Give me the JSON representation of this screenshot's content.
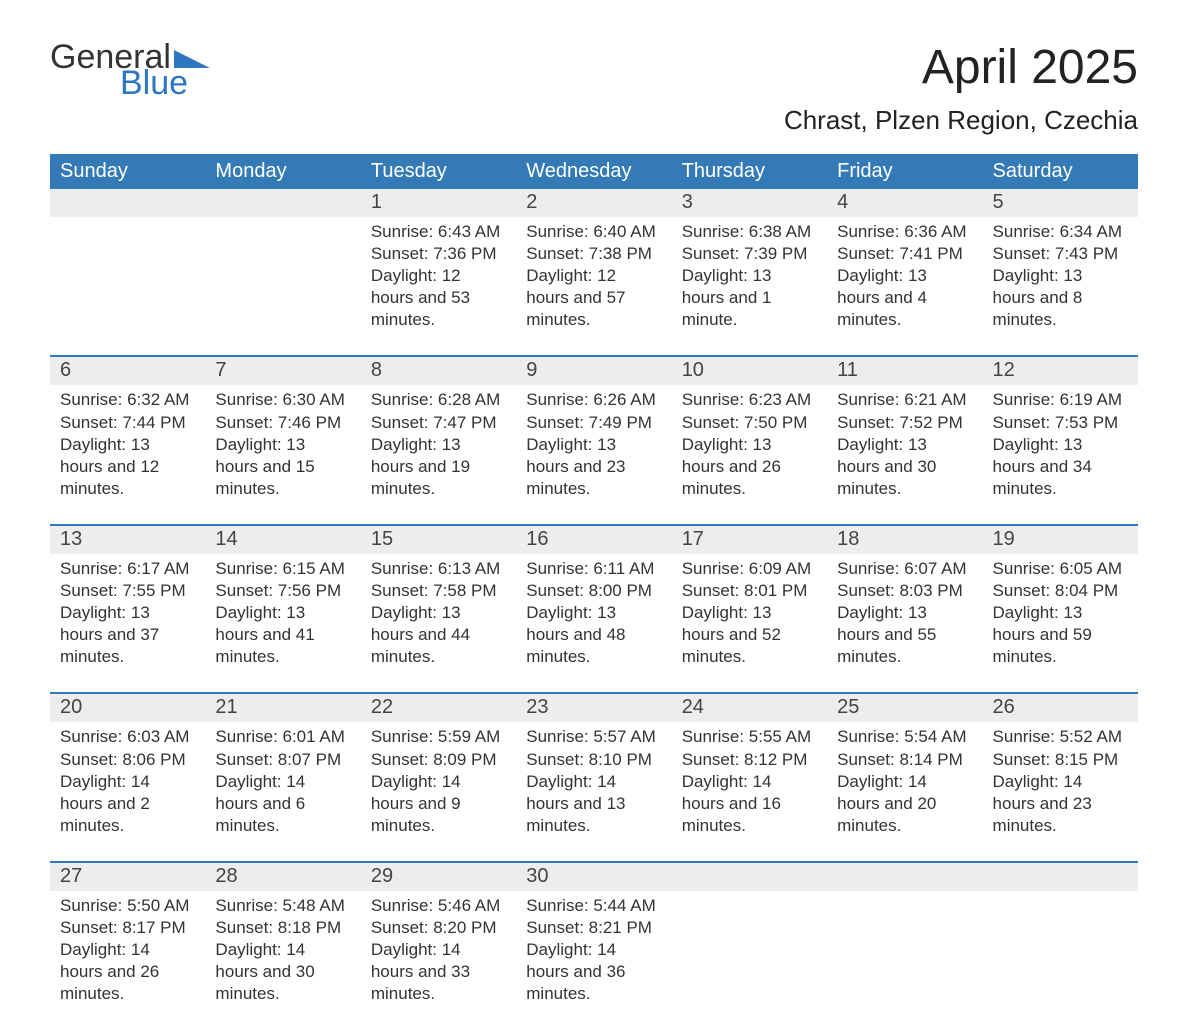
{
  "logo": {
    "word1": "General",
    "word2": "Blue"
  },
  "title": "April 2025",
  "location": "Chrast, Plzen Region, Czechia",
  "colors": {
    "header_bg": "#337ab7",
    "header_text": "#ffffff",
    "daynum_bg": "#ededed",
    "accent": "#2d76c0",
    "text": "#333333",
    "page_bg": "#ffffff"
  },
  "typography": {
    "title_fontsize": 48,
    "location_fontsize": 26,
    "header_fontsize": 20,
    "daynum_fontsize": 20,
    "body_fontsize": 17
  },
  "daynames": [
    "Sunday",
    "Monday",
    "Tuesday",
    "Wednesday",
    "Thursday",
    "Friday",
    "Saturday"
  ],
  "weeks": [
    [
      {
        "n": "",
        "sunrise": "",
        "sunset": "",
        "daylight": ""
      },
      {
        "n": "",
        "sunrise": "",
        "sunset": "",
        "daylight": ""
      },
      {
        "n": "1",
        "sunrise": "Sunrise: 6:43 AM",
        "sunset": "Sunset: 7:36 PM",
        "daylight": "Daylight: 12 hours and 53 minutes."
      },
      {
        "n": "2",
        "sunrise": "Sunrise: 6:40 AM",
        "sunset": "Sunset: 7:38 PM",
        "daylight": "Daylight: 12 hours and 57 minutes."
      },
      {
        "n": "3",
        "sunrise": "Sunrise: 6:38 AM",
        "sunset": "Sunset: 7:39 PM",
        "daylight": "Daylight: 13 hours and 1 minute."
      },
      {
        "n": "4",
        "sunrise": "Sunrise: 6:36 AM",
        "sunset": "Sunset: 7:41 PM",
        "daylight": "Daylight: 13 hours and 4 minutes."
      },
      {
        "n": "5",
        "sunrise": "Sunrise: 6:34 AM",
        "sunset": "Sunset: 7:43 PM",
        "daylight": "Daylight: 13 hours and 8 minutes."
      }
    ],
    [
      {
        "n": "6",
        "sunrise": "Sunrise: 6:32 AM",
        "sunset": "Sunset: 7:44 PM",
        "daylight": "Daylight: 13 hours and 12 minutes."
      },
      {
        "n": "7",
        "sunrise": "Sunrise: 6:30 AM",
        "sunset": "Sunset: 7:46 PM",
        "daylight": "Daylight: 13 hours and 15 minutes."
      },
      {
        "n": "8",
        "sunrise": "Sunrise: 6:28 AM",
        "sunset": "Sunset: 7:47 PM",
        "daylight": "Daylight: 13 hours and 19 minutes."
      },
      {
        "n": "9",
        "sunrise": "Sunrise: 6:26 AM",
        "sunset": "Sunset: 7:49 PM",
        "daylight": "Daylight: 13 hours and 23 minutes."
      },
      {
        "n": "10",
        "sunrise": "Sunrise: 6:23 AM",
        "sunset": "Sunset: 7:50 PM",
        "daylight": "Daylight: 13 hours and 26 minutes."
      },
      {
        "n": "11",
        "sunrise": "Sunrise: 6:21 AM",
        "sunset": "Sunset: 7:52 PM",
        "daylight": "Daylight: 13 hours and 30 minutes."
      },
      {
        "n": "12",
        "sunrise": "Sunrise: 6:19 AM",
        "sunset": "Sunset: 7:53 PM",
        "daylight": "Daylight: 13 hours and 34 minutes."
      }
    ],
    [
      {
        "n": "13",
        "sunrise": "Sunrise: 6:17 AM",
        "sunset": "Sunset: 7:55 PM",
        "daylight": "Daylight: 13 hours and 37 minutes."
      },
      {
        "n": "14",
        "sunrise": "Sunrise: 6:15 AM",
        "sunset": "Sunset: 7:56 PM",
        "daylight": "Daylight: 13 hours and 41 minutes."
      },
      {
        "n": "15",
        "sunrise": "Sunrise: 6:13 AM",
        "sunset": "Sunset: 7:58 PM",
        "daylight": "Daylight: 13 hours and 44 minutes."
      },
      {
        "n": "16",
        "sunrise": "Sunrise: 6:11 AM",
        "sunset": "Sunset: 8:00 PM",
        "daylight": "Daylight: 13 hours and 48 minutes."
      },
      {
        "n": "17",
        "sunrise": "Sunrise: 6:09 AM",
        "sunset": "Sunset: 8:01 PM",
        "daylight": "Daylight: 13 hours and 52 minutes."
      },
      {
        "n": "18",
        "sunrise": "Sunrise: 6:07 AM",
        "sunset": "Sunset: 8:03 PM",
        "daylight": "Daylight: 13 hours and 55 minutes."
      },
      {
        "n": "19",
        "sunrise": "Sunrise: 6:05 AM",
        "sunset": "Sunset: 8:04 PM",
        "daylight": "Daylight: 13 hours and 59 minutes."
      }
    ],
    [
      {
        "n": "20",
        "sunrise": "Sunrise: 6:03 AM",
        "sunset": "Sunset: 8:06 PM",
        "daylight": "Daylight: 14 hours and 2 minutes."
      },
      {
        "n": "21",
        "sunrise": "Sunrise: 6:01 AM",
        "sunset": "Sunset: 8:07 PM",
        "daylight": "Daylight: 14 hours and 6 minutes."
      },
      {
        "n": "22",
        "sunrise": "Sunrise: 5:59 AM",
        "sunset": "Sunset: 8:09 PM",
        "daylight": "Daylight: 14 hours and 9 minutes."
      },
      {
        "n": "23",
        "sunrise": "Sunrise: 5:57 AM",
        "sunset": "Sunset: 8:10 PM",
        "daylight": "Daylight: 14 hours and 13 minutes."
      },
      {
        "n": "24",
        "sunrise": "Sunrise: 5:55 AM",
        "sunset": "Sunset: 8:12 PM",
        "daylight": "Daylight: 14 hours and 16 minutes."
      },
      {
        "n": "25",
        "sunrise": "Sunrise: 5:54 AM",
        "sunset": "Sunset: 8:14 PM",
        "daylight": "Daylight: 14 hours and 20 minutes."
      },
      {
        "n": "26",
        "sunrise": "Sunrise: 5:52 AM",
        "sunset": "Sunset: 8:15 PM",
        "daylight": "Daylight: 14 hours and 23 minutes."
      }
    ],
    [
      {
        "n": "27",
        "sunrise": "Sunrise: 5:50 AM",
        "sunset": "Sunset: 8:17 PM",
        "daylight": "Daylight: 14 hours and 26 minutes."
      },
      {
        "n": "28",
        "sunrise": "Sunrise: 5:48 AM",
        "sunset": "Sunset: 8:18 PM",
        "daylight": "Daylight: 14 hours and 30 minutes."
      },
      {
        "n": "29",
        "sunrise": "Sunrise: 5:46 AM",
        "sunset": "Sunset: 8:20 PM",
        "daylight": "Daylight: 14 hours and 33 minutes."
      },
      {
        "n": "30",
        "sunrise": "Sunrise: 5:44 AM",
        "sunset": "Sunset: 8:21 PM",
        "daylight": "Daylight: 14 hours and 36 minutes."
      },
      {
        "n": "",
        "sunrise": "",
        "sunset": "",
        "daylight": ""
      },
      {
        "n": "",
        "sunrise": "",
        "sunset": "",
        "daylight": ""
      },
      {
        "n": "",
        "sunrise": "",
        "sunset": "",
        "daylight": ""
      }
    ]
  ]
}
